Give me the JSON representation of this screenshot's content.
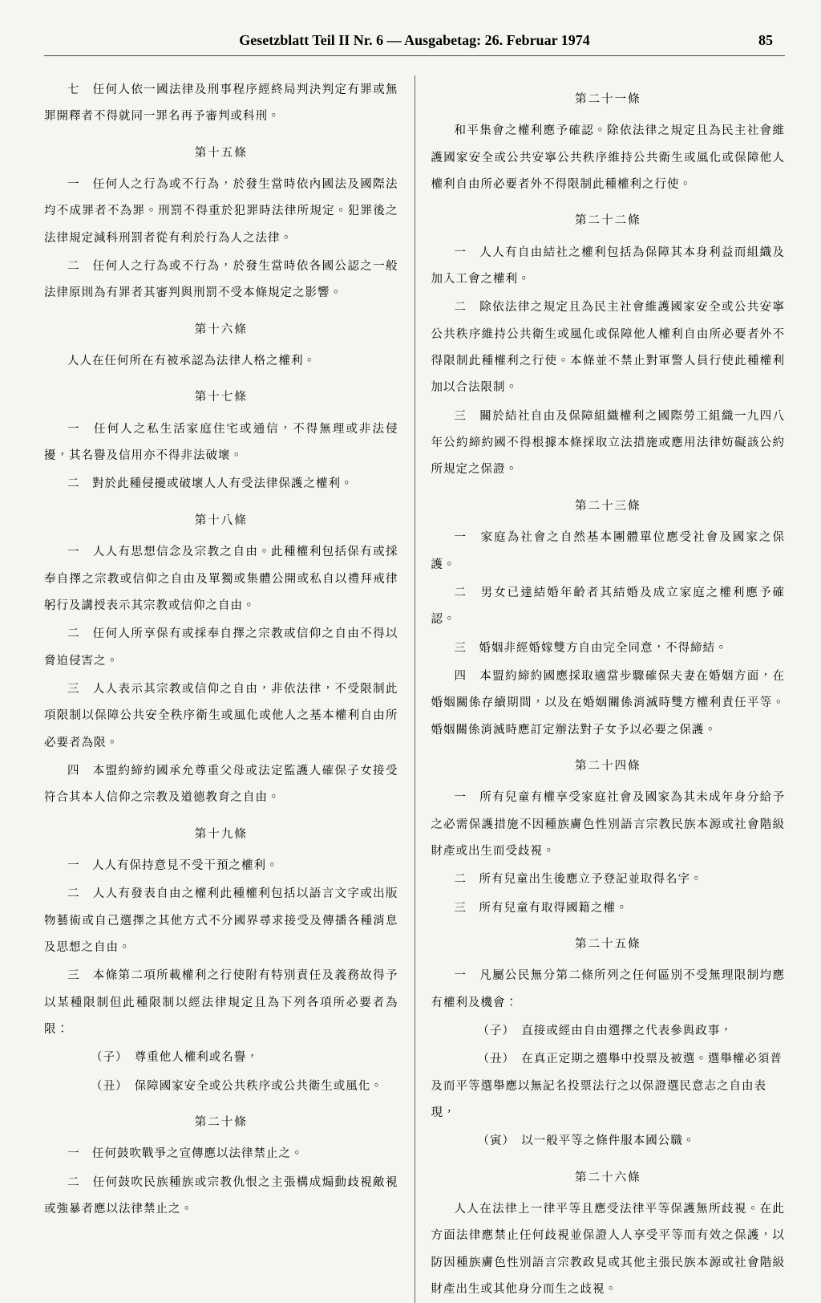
{
  "header": {
    "title": "Gesetzblatt Teil II Nr. 6 — Ausgabetag: 26. Februar 1974",
    "page": "85"
  },
  "left": {
    "p0": "七　任何人依一國法律及刑事程序經終局判決判定有罪或無罪開釋者不得就同一罪名再予審判或科刑。",
    "a15_title": "第十五條",
    "a15_1": "一　任何人之行為或不行為，於發生當時依內國法及國際法均不成罪者不為罪。刑罰不得重於犯罪時法律所規定。犯罪後之法律規定減科刑罰者從有利於行為人之法律。",
    "a15_2": "二　任何人之行為或不行為，於發生當時依各國公認之一般法律原則為有罪者其審判與刑罰不受本條規定之影響。",
    "a16_title": "第十六條",
    "a16_1": "人人在任何所在有被承認為法律人格之權利。",
    "a17_title": "第十七條",
    "a17_1": "一　任何人之私生活家庭住宅或通信，不得無理或非法侵擾，其名譽及信用亦不得非法破壞。",
    "a17_2": "二　對於此種侵擾或破壞人人有受法律保護之權利。",
    "a18_title": "第十八條",
    "a18_1": "一　人人有思想信念及宗教之自由。此種權利包括保有或採奉自擇之宗教或信仰之自由及單獨或集體公開或私自以禮拜戒律躬行及講授表示其宗教或信仰之自由。",
    "a18_2": "二　任何人所享保有或採奉自擇之宗教或信仰之自由不得以脅迫侵害之。",
    "a18_3": "三　人人表示其宗教或信仰之自由，非依法律，不受限制此項限制以保障公共安全秩序衛生或風化或他人之基本權利自由所必要者為限。",
    "a18_4": "四　本盟約締約國承允尊重父母或法定監護人確保子女接受符合其本人信仰之宗教及道德教育之自由。",
    "a19_title": "第十九條",
    "a19_1": "一　人人有保持意見不受干預之權利。",
    "a19_2": "二　人人有發表自由之權利此種權利包括以語言文字或出版物藝術或自己選擇之其他方式不分國界尋求接受及傳播各種消息及思想之自由。",
    "a19_3": "三　本條第二項所載權利之行使附有特別責任及義務故得予以某種限制但此種限制以經法律規定且為下列各項所必要者為限：",
    "a19_3a": "（子）　尊重他人權利或名譽，",
    "a19_3b": "（丑）　保障國家安全或公共秩序或公共衛生或風化。",
    "a20_title": "第二十條",
    "a20_1": "一　任何鼓吹戰爭之宣傳應以法律禁止之。",
    "a20_2": "二　任何鼓吹民族種族或宗教仇恨之主張構成煽動歧視敵視或強暴者應以法律禁止之。"
  },
  "right": {
    "a21_title": "第二十一條",
    "a21_1": "和平集會之權利應予確認。除依法律之規定且為民主社會維護國家安全或公共安寧公共秩序維持公共衛生或風化或保障他人權利自由所必要者外不得限制此種權利之行使。",
    "a22_title": "第二十二條",
    "a22_1": "一　人人有自由結社之權利包括為保障其本身利益而組織及加入工會之權利。",
    "a22_2": "二　除依法律之規定且為民主社會維護國家安全或公共安寧公共秩序維持公共衛生或風化或保障他人權利自由所必要者外不得限制此種權利之行使。本條並不禁止對軍警人員行使此種權利加以合法限制。",
    "a22_3": "三　關於結社自由及保障組織權利之國際勞工組織一九四八年公約締約國不得根據本條採取立法措施或應用法律妨礙該公約所規定之保證。",
    "a23_title": "第二十三條",
    "a23_1": "一　家庭為社會之自然基本團體單位應受社會及國家之保護。",
    "a23_2": "二　男女已達結婚年齡者其結婚及成立家庭之權利應予確認。",
    "a23_3": "三　婚姻非經婚嫁雙方自由完全同意，不得締結。",
    "a23_4": "四　本盟約締約國應採取適當步驟確保夫妻在婚姻方面，在婚姻關係存續期間，以及在婚姻關係消滅時雙方權利責任平等。婚姻關係消滅時應訂定辦法對子女予以必要之保護。",
    "a24_title": "第二十四條",
    "a24_1": "一　所有兒童有權享受家庭社會及國家為其未成年身分給予之必需保護措施不因種族膚色性別語言宗教民族本源或社會階級財產或出生而受歧視。",
    "a24_2": "二　所有兒童出生後應立予登記並取得名字。",
    "a24_3": "三　所有兒童有取得國籍之權。",
    "a25_title": "第二十五條",
    "a25_1": "一　凡屬公民無分第二條所列之任何區別不受無理限制均應有權利及機會：",
    "a25_1a": "（子）　直接或經由自由選擇之代表參與政事，",
    "a25_1b": "（丑）　在真正定期之選舉中投票及被選。選舉權必須普及而平等選舉應以無記名投票法行之以保證選民意志之自由表現，",
    "a25_1c": "（寅）　以一般平等之條件服本國公職。",
    "a26_title": "第二十六條",
    "a26_1": "人人在法律上一律平等且應受法律平等保護無所歧視。在此方面法律應禁止任何歧視並保證人人享受平等而有效之保護，以防因種族膚色性別語言宗教政見或其他主張民族本源或社會階級財產出生或其他身分而生之歧視。"
  }
}
